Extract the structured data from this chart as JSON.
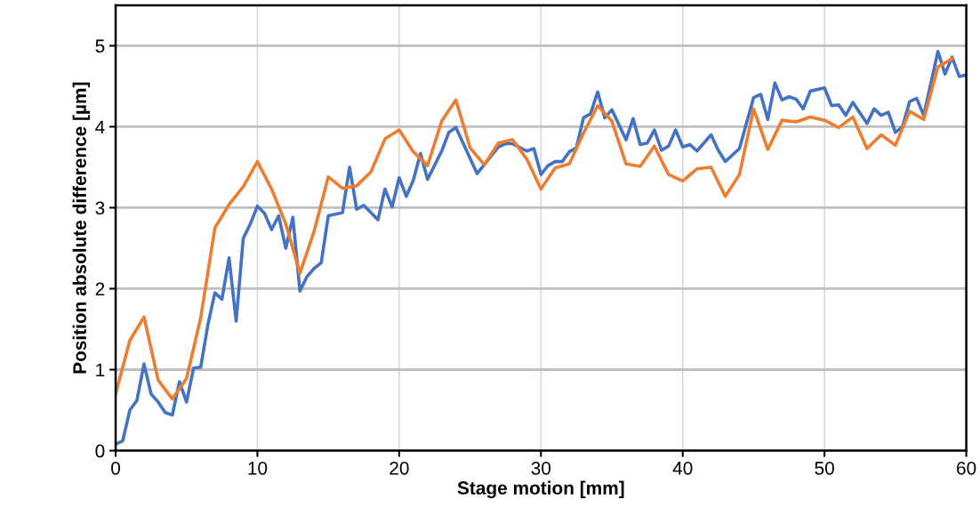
{
  "chart_data": {
    "type": "line",
    "xlabel": "Stage motion [mm]",
    "ylabel": "Position absolute difference [µm]",
    "xlim": [
      0,
      60
    ],
    "xticks": [
      0,
      10,
      20,
      30,
      40,
      50,
      60
    ],
    "ylim": [
      0,
      5.5
    ],
    "yticks": [
      0,
      1,
      2,
      3,
      4,
      5
    ],
    "grid": true,
    "marker": "none",
    "line_style": "solid",
    "series": [
      {
        "color": "#4472c4",
        "x": [
          0,
          0.5,
          1,
          1.5,
          2,
          2.5,
          3,
          3.5,
          4,
          4.5,
          5,
          5.5,
          6,
          6.5,
          7,
          7.5,
          8,
          8.5,
          9,
          9.5,
          10,
          10.5,
          11,
          11.5,
          12,
          12.5,
          13,
          13.5,
          14,
          14.5,
          15,
          16,
          16.5,
          17,
          17.5,
          18.5,
          19,
          19.5,
          20,
          20.5,
          21,
          21.5,
          22,
          23,
          23.5,
          24,
          25.5,
          26,
          27,
          27.5,
          28,
          29,
          29.5,
          30,
          30.5,
          31,
          31.5,
          32,
          32.5,
          33,
          33.5,
          34,
          34.5,
          35,
          36,
          36.5,
          37,
          37.5,
          38,
          38.5,
          39,
          39.5,
          40,
          40.5,
          41,
          42,
          42.5,
          43,
          44,
          45,
          45.5,
          46,
          46.5,
          47,
          47.5,
          48,
          48.5,
          49,
          50,
          50.5,
          51,
          51.5,
          52,
          53,
          53.5,
          54,
          54.5,
          55,
          55.5,
          56,
          56.5,
          57,
          58,
          58.5,
          59,
          59.5,
          60
        ],
        "values": [
          0.08,
          0.12,
          0.5,
          0.62,
          1.07,
          0.7,
          0.6,
          0.47,
          0.44,
          0.85,
          0.6,
          1.02,
          1.03,
          1.55,
          1.95,
          1.87,
          2.38,
          1.6,
          2.62,
          2.8,
          3.02,
          2.93,
          2.73,
          2.9,
          2.5,
          2.88,
          1.97,
          2.15,
          2.25,
          2.32,
          2.9,
          2.94,
          3.5,
          2.98,
          3.03,
          2.85,
          3.23,
          3.01,
          3.37,
          3.14,
          3.34,
          3.67,
          3.35,
          3.7,
          3.93,
          3.99,
          3.42,
          3.53,
          3.75,
          3.79,
          3.79,
          3.7,
          3.73,
          3.41,
          3.52,
          3.57,
          3.57,
          3.69,
          3.74,
          4.11,
          4.16,
          4.43,
          4.11,
          4.21,
          3.84,
          4.1,
          3.78,
          3.8,
          3.96,
          3.71,
          3.76,
          3.96,
          3.75,
          3.78,
          3.7,
          3.9,
          3.71,
          3.57,
          3.73,
          4.36,
          4.4,
          4.09,
          4.54,
          4.33,
          4.37,
          4.34,
          4.22,
          4.44,
          4.48,
          4.26,
          4.27,
          4.14,
          4.3,
          4.04,
          4.22,
          4.14,
          4.18,
          3.93,
          4.0,
          4.31,
          4.35,
          4.14,
          4.93,
          4.65,
          4.86,
          4.62,
          4.64
        ]
      },
      {
        "color": "#ed7d31",
        "x": [
          0,
          1,
          2,
          3,
          4,
          5,
          6,
          7,
          8,
          9,
          10,
          11,
          12,
          13,
          14,
          15,
          16,
          17,
          18,
          19,
          20,
          21,
          22,
          23,
          24,
          25,
          26,
          27,
          28,
          29,
          30,
          31,
          32,
          33,
          34,
          35,
          36,
          37,
          38,
          39,
          40,
          41,
          42,
          43,
          44,
          45,
          46,
          47,
          48,
          49,
          50,
          51,
          52,
          53,
          54,
          55,
          56,
          57,
          58,
          59
        ],
        "values": [
          0.7,
          1.36,
          1.65,
          0.87,
          0.64,
          0.89,
          1.64,
          2.75,
          3.04,
          3.26,
          3.57,
          3.23,
          2.8,
          2.19,
          2.71,
          3.38,
          3.24,
          3.27,
          3.44,
          3.85,
          3.96,
          3.69,
          3.52,
          4.07,
          4.33,
          3.74,
          3.53,
          3.8,
          3.84,
          3.6,
          3.23,
          3.49,
          3.54,
          3.92,
          4.26,
          4.07,
          3.54,
          3.51,
          3.76,
          3.41,
          3.33,
          3.48,
          3.5,
          3.14,
          3.41,
          4.22,
          3.72,
          4.08,
          4.06,
          4.12,
          4.08,
          3.99,
          4.12,
          3.73,
          3.9,
          3.77,
          4.19,
          4.09,
          4.74,
          4.84
        ]
      }
    ]
  }
}
